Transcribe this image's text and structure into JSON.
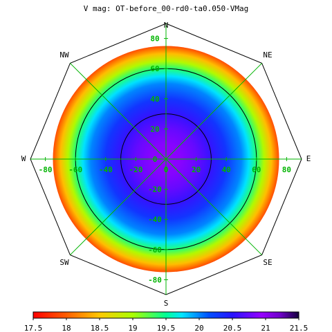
{
  "chart_data": {
    "type": "heatmap",
    "projection": "polar",
    "title": "V mag: OT-before_00-rd0-ta0.050-VMag",
    "directions": {
      "N": "N",
      "NE": "NE",
      "E": "E",
      "SE": "SE",
      "S": "S",
      "SW": "SW",
      "W": "W",
      "NW": "NW"
    },
    "axis_ticks": {
      "vertical": [
        "80",
        "60",
        "40",
        "20",
        "0",
        "-20",
        "-40",
        "-60",
        "-80"
      ],
      "horizontal": [
        "-80",
        "-60",
        "-40",
        "-20",
        "0",
        "20",
        "40",
        "60",
        "80"
      ]
    },
    "axis_tick_values": [
      -80,
      -60,
      -40,
      -20,
      0,
      20,
      40,
      60,
      80
    ],
    "zenith_angle_range": [
      0,
      90
    ],
    "data_extent_deg": 75,
    "radial_profile": {
      "zenith_angle_deg": [
        0,
        10,
        20,
        30,
        40,
        50,
        55,
        60,
        65,
        70,
        75
      ],
      "vmag": [
        20.92,
        20.88,
        20.75,
        20.55,
        20.3,
        20.0,
        19.75,
        19.4,
        18.95,
        18.45,
        17.9
      ]
    },
    "contour_levels_deg": [
      30,
      60,
      90
    ],
    "colorbar": {
      "min": 17.5,
      "max": 21.5,
      "ticks": [
        "17.5",
        "18",
        "18.5",
        "19",
        "19.5",
        "20",
        "20.5",
        "21",
        "21.5"
      ],
      "tick_values": [
        17.5,
        18,
        18.5,
        19,
        19.5,
        20,
        20.5,
        21,
        21.5
      ]
    },
    "colors": {
      "grid": "#00b400",
      "outline": "#000000",
      "tick_label": "#00b400"
    }
  }
}
